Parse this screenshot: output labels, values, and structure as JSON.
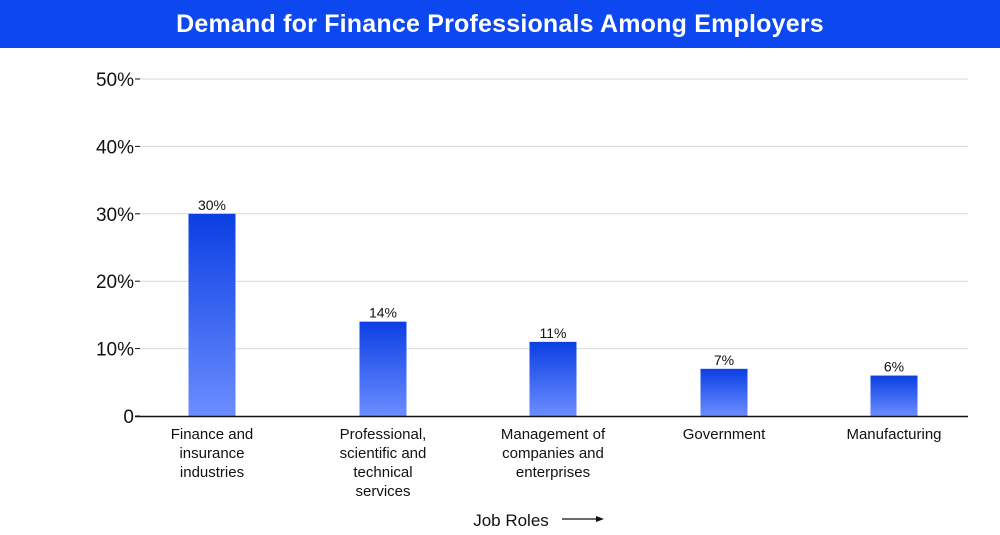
{
  "colors": {
    "banner": "#0d47f0",
    "title_text": "#ffffff",
    "bar_top": "#0b3fe3",
    "bar_bottom": "#6b8dff",
    "grid": "#d9d9d9",
    "axis": "#111111"
  },
  "chart_data": {
    "type": "bar",
    "title": "Demand for Finance Professionals Among Employers",
    "xlabel": "Job Roles",
    "ylabel": "",
    "ylim": [
      0,
      50
    ],
    "grid": true,
    "legend": "none",
    "yticks": [
      0,
      10,
      20,
      30,
      40,
      50
    ],
    "ytick_labels": [
      "0",
      "10%",
      "20%",
      "30%",
      "40%",
      "50%"
    ],
    "categories": [
      "Finance and insurance industries",
      "Professional, scientific and technical services",
      "Management of companies and enterprises",
      "Government",
      "Manufacturing"
    ],
    "category_lines": [
      [
        "Finance and",
        "insurance",
        "industries"
      ],
      [
        "Professional,",
        "scientific and",
        "technical",
        "services"
      ],
      [
        "Management of",
        "companies and",
        "enterprises"
      ],
      [
        "Government"
      ],
      [
        "Manufacturing"
      ]
    ],
    "values": [
      30,
      14,
      11,
      7,
      6
    ],
    "data_labels": [
      "30%",
      "14%",
      "11%",
      "7%",
      "6%"
    ]
  }
}
